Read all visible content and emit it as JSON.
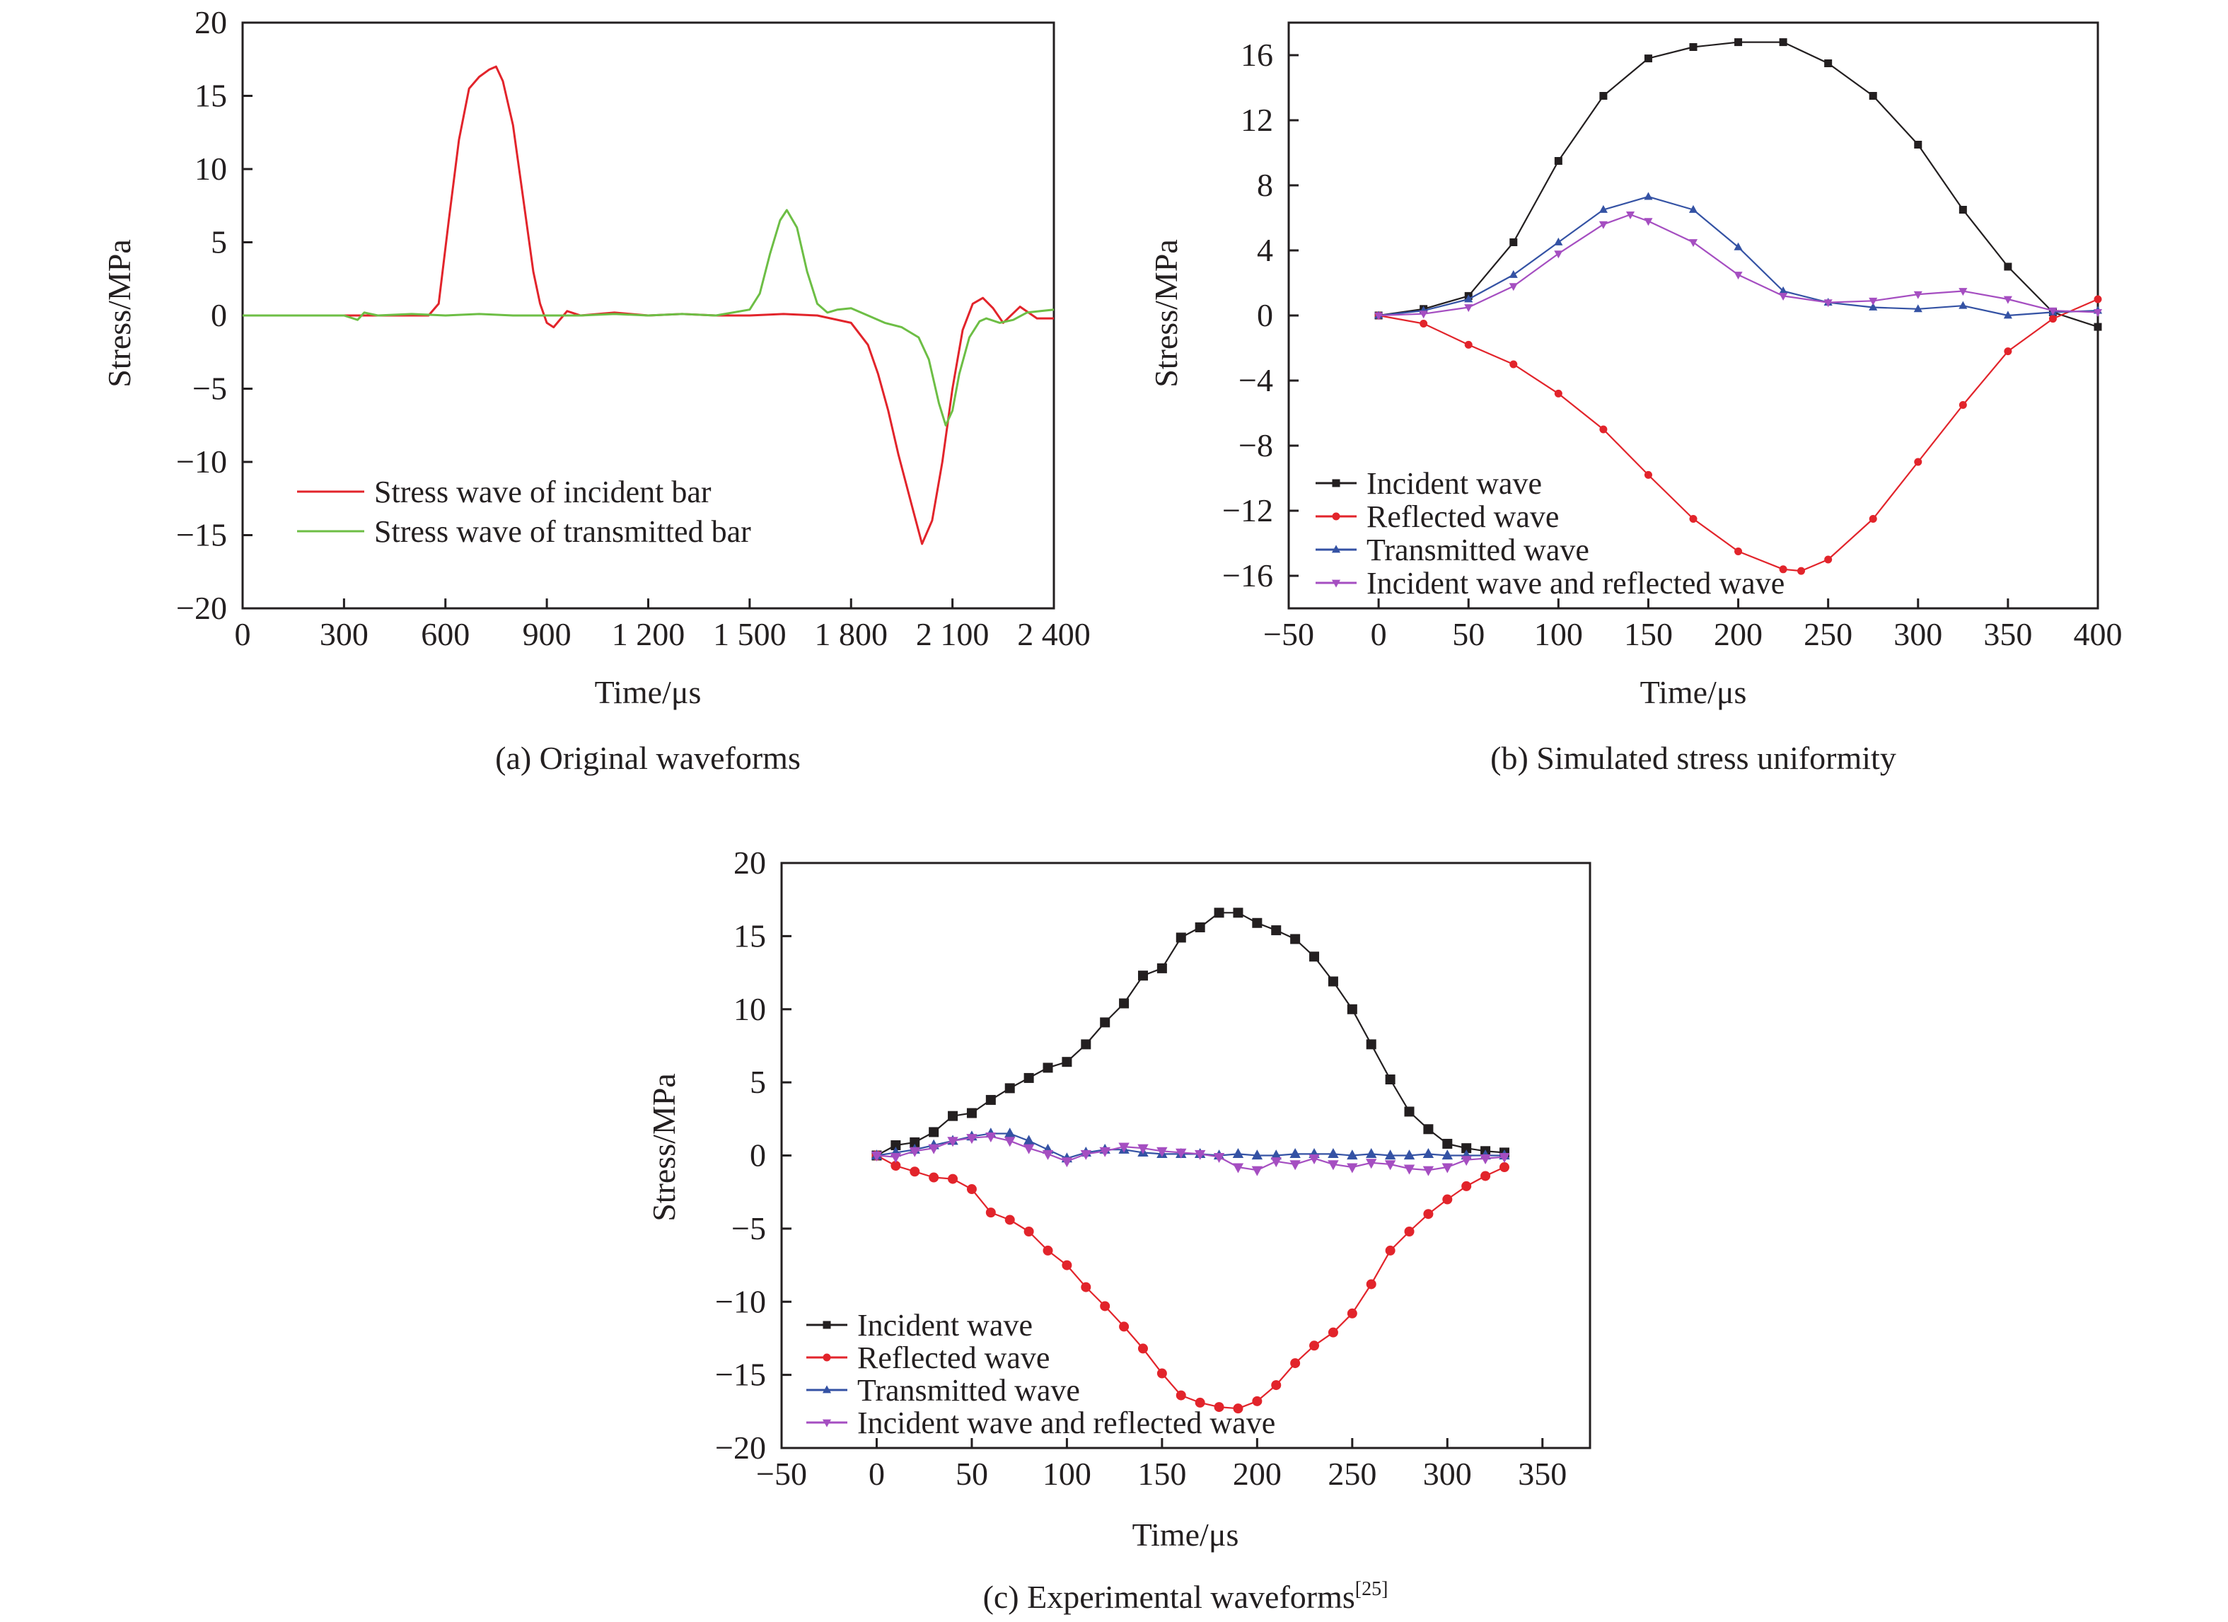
{
  "chart_data": [
    {
      "panel": "a",
      "type": "line",
      "caption": "(a) Original waveforms",
      "xlabel": "Time/μs",
      "ylabel": "Stress/MPa",
      "xlim": [
        0,
        2400
      ],
      "ylim": [
        -20,
        20
      ],
      "xticks": [
        0,
        300,
        600,
        900,
        1200,
        1500,
        1800,
        2100,
        2400
      ],
      "xtick_labels": [
        "0",
        "300",
        "600",
        "900",
        "1 200",
        "1 500",
        "1 800",
        "2 100",
        "2 400"
      ],
      "yticks": [
        -20,
        -15,
        -10,
        -5,
        0,
        5,
        10,
        15,
        20
      ],
      "ytick_labels": [
        "−20",
        "−15",
        "−10",
        "−5",
        "0",
        "5",
        "10",
        "15",
        "20"
      ],
      "legend_position": "lower-left",
      "series": [
        {
          "name": "Stress wave of incident bar",
          "color": "#e2242b",
          "x": [
            0,
            300,
            550,
            580,
            610,
            640,
            670,
            700,
            730,
            750,
            770,
            800,
            830,
            860,
            880,
            900,
            920,
            960,
            1000,
            1100,
            1200,
            1300,
            1400,
            1500,
            1600,
            1700,
            1800,
            1850,
            1880,
            1910,
            1940,
            1980,
            2010,
            2040,
            2070,
            2100,
            2130,
            2160,
            2190,
            2220,
            2250,
            2300,
            2350,
            2400
          ],
          "y": [
            0,
            0,
            0,
            0.8,
            6.5,
            12,
            15.5,
            16.3,
            16.8,
            17,
            16,
            13,
            8,
            3,
            0.8,
            -0.5,
            -0.8,
            0.3,
            0,
            0.2,
            0,
            0.1,
            0,
            0,
            0.1,
            0,
            -0.5,
            -2,
            -4,
            -6.5,
            -9.5,
            -13,
            -15.6,
            -14,
            -10,
            -5,
            -1,
            0.8,
            1.2,
            0.5,
            -0.5,
            0.6,
            -0.2,
            -0.2
          ]
        },
        {
          "name": "Stress wave of transmitted bar",
          "color": "#6dbe45",
          "x": [
            0,
            300,
            340,
            360,
            400,
            500,
            600,
            700,
            800,
            900,
            1000,
            1100,
            1200,
            1300,
            1400,
            1500,
            1530,
            1560,
            1590,
            1610,
            1640,
            1670,
            1700,
            1730,
            1760,
            1800,
            1850,
            1900,
            1950,
            2000,
            2030,
            2060,
            2080,
            2100,
            2120,
            2150,
            2180,
            2200,
            2240,
            2280,
            2320,
            2360,
            2400
          ],
          "y": [
            0,
            0,
            -0.3,
            0.2,
            0,
            0.1,
            0,
            0.1,
            0,
            0,
            0,
            0.1,
            0,
            0.1,
            0,
            0.4,
            1.5,
            4.2,
            6.5,
            7.2,
            6,
            3,
            0.8,
            0.2,
            0.4,
            0.5,
            0,
            -0.5,
            -0.8,
            -1.5,
            -3,
            -6,
            -7.5,
            -6.5,
            -4,
            -1.5,
            -0.4,
            -0.2,
            -0.5,
            -0.3,
            0.2,
            0.3,
            0.4
          ]
        }
      ]
    },
    {
      "panel": "b",
      "type": "line",
      "caption": "(b) Simulated stress uniformity",
      "xlabel": "Time/μs",
      "ylabel": "Stress/MPa",
      "xlim": [
        -50,
        400
      ],
      "ylim": [
        -18,
        18
      ],
      "xticks": [
        -50,
        0,
        50,
        100,
        150,
        200,
        250,
        300,
        350,
        400
      ],
      "xtick_labels": [
        "−50",
        "0",
        "50",
        "100",
        "150",
        "200",
        "250",
        "300",
        "350",
        "400"
      ],
      "yticks": [
        -16,
        -12,
        -8,
        -4,
        0,
        4,
        8,
        12,
        16
      ],
      "ytick_labels": [
        "−16",
        "−12",
        "−8",
        "−4",
        "0",
        "4",
        "8",
        "12",
        "16"
      ],
      "legend_position": "lower-left",
      "series": [
        {
          "name": "Incident wave",
          "color": "#231f20",
          "marker": "square",
          "x": [
            0,
            25,
            50,
            75,
            100,
            125,
            150,
            175,
            200,
            225,
            250,
            275,
            300,
            325,
            350,
            375,
            400
          ],
          "y": [
            0,
            0.4,
            1.2,
            4.5,
            9.5,
            13.5,
            15.8,
            16.5,
            16.8,
            16.8,
            15.5,
            13.5,
            10.5,
            6.5,
            3,
            0.2,
            -0.7
          ]
        },
        {
          "name": "Reflected wave",
          "color": "#e2242b",
          "marker": "circle",
          "x": [
            0,
            25,
            50,
            75,
            100,
            125,
            150,
            175,
            200,
            225,
            235,
            250,
            275,
            300,
            325,
            350,
            375,
            400
          ],
          "y": [
            0,
            -0.5,
            -1.8,
            -3,
            -4.8,
            -7,
            -9.8,
            -12.5,
            -14.5,
            -15.6,
            -15.7,
            -15,
            -12.5,
            -9,
            -5.5,
            -2.2,
            -0.2,
            1
          ]
        },
        {
          "name": "Transmitted wave",
          "color": "#3452a4",
          "marker": "triangle-up",
          "x": [
            0,
            25,
            50,
            75,
            100,
            125,
            150,
            175,
            200,
            225,
            250,
            275,
            300,
            325,
            350,
            375,
            400
          ],
          "y": [
            0,
            0.3,
            1,
            2.5,
            4.5,
            6.5,
            7.3,
            6.5,
            4.2,
            1.5,
            0.8,
            0.5,
            0.4,
            0.6,
            0,
            0.2,
            0.3
          ]
        },
        {
          "name": "Incident wave and reflected wave",
          "color": "#a54ec1",
          "marker": "triangle-down",
          "x": [
            0,
            25,
            50,
            75,
            100,
            125,
            140,
            150,
            175,
            200,
            225,
            250,
            275,
            300,
            325,
            350,
            375,
            400
          ],
          "y": [
            0,
            0.1,
            0.5,
            1.8,
            3.8,
            5.6,
            6.2,
            5.8,
            4.5,
            2.5,
            1.2,
            0.8,
            0.9,
            1.3,
            1.5,
            1,
            0.3,
            0.2
          ]
        }
      ]
    },
    {
      "panel": "c",
      "type": "line",
      "caption": "(c) Experimental waveforms",
      "caption_ref": "[25]",
      "xlabel": "Time/μs",
      "ylabel": "Stress/MPa",
      "xlim": [
        -50,
        375
      ],
      "ylim": [
        -20,
        20
      ],
      "xticks": [
        -50,
        0,
        50,
        100,
        150,
        200,
        250,
        300,
        350
      ],
      "xtick_labels": [
        "−50",
        "0",
        "50",
        "100",
        "150",
        "200",
        "250",
        "300",
        "350"
      ],
      "yticks": [
        -20,
        -15,
        -10,
        -5,
        0,
        5,
        10,
        15,
        20
      ],
      "ytick_labels": [
        "−20",
        "−15",
        "−10",
        "−5",
        "0",
        "5",
        "10",
        "15",
        "20"
      ],
      "legend_position": "lower-left",
      "series": [
        {
          "name": "Incident wave",
          "color": "#231f20",
          "marker": "square",
          "x": [
            0,
            10,
            20,
            30,
            40,
            50,
            60,
            70,
            80,
            90,
            100,
            110,
            120,
            130,
            140,
            150,
            160,
            170,
            180,
            190,
            200,
            210,
            220,
            230,
            240,
            250,
            260,
            270,
            280,
            290,
            300,
            310,
            320,
            330
          ],
          "y": [
            0,
            0.7,
            0.9,
            1.6,
            2.7,
            2.9,
            3.8,
            4.6,
            5.3,
            6.0,
            6.4,
            7.6,
            9.1,
            10.4,
            12.3,
            12.8,
            14.9,
            15.6,
            16.6,
            16.6,
            15.9,
            15.4,
            14.8,
            13.6,
            11.9,
            10.0,
            7.6,
            5.2,
            3.0,
            1.8,
            0.8,
            0.5,
            0.3,
            0.2
          ]
        },
        {
          "name": "Reflected wave",
          "color": "#e2242b",
          "marker": "circle",
          "x": [
            0,
            10,
            20,
            30,
            40,
            50,
            60,
            70,
            80,
            90,
            100,
            110,
            120,
            130,
            140,
            150,
            160,
            170,
            180,
            190,
            200,
            210,
            220,
            230,
            240,
            250,
            260,
            270,
            280,
            290,
            300,
            310,
            320,
            330
          ],
          "y": [
            0,
            -0.7,
            -1.1,
            -1.5,
            -1.6,
            -2.3,
            -3.9,
            -4.4,
            -5.2,
            -6.5,
            -7.5,
            -9.0,
            -10.3,
            -11.7,
            -13.2,
            -14.9,
            -16.4,
            -16.9,
            -17.2,
            -17.3,
            -16.8,
            -15.7,
            -14.2,
            -13.0,
            -12.1,
            -10.8,
            -8.8,
            -6.5,
            -5.2,
            -4.0,
            -3.0,
            -2.1,
            -1.4,
            -0.8
          ]
        },
        {
          "name": "Transmitted wave",
          "color": "#3452a4",
          "marker": "triangle-up",
          "x": [
            0,
            10,
            20,
            30,
            40,
            50,
            60,
            70,
            80,
            90,
            100,
            110,
            120,
            130,
            140,
            150,
            160,
            170,
            180,
            190,
            200,
            210,
            220,
            230,
            240,
            250,
            260,
            270,
            280,
            290,
            300,
            310,
            320,
            330
          ],
          "y": [
            0,
            0.2,
            0.4,
            0.7,
            1.0,
            1.3,
            1.5,
            1.5,
            1.0,
            0.4,
            -0.2,
            0.2,
            0.4,
            0.4,
            0.2,
            0.1,
            0.1,
            0.1,
            0.0,
            0.1,
            0.0,
            0.0,
            0.1,
            0.1,
            0.1,
            0.0,
            0.1,
            0.0,
            0.0,
            0.1,
            0.0,
            0.0,
            0.0,
            0.0
          ]
        },
        {
          "name": "Incident wave and reflected wave",
          "color": "#a54ec1",
          "marker": "triangle-down",
          "x": [
            0,
            10,
            20,
            30,
            40,
            50,
            60,
            70,
            80,
            90,
            100,
            110,
            120,
            130,
            140,
            150,
            160,
            170,
            180,
            190,
            200,
            210,
            220,
            230,
            240,
            250,
            260,
            270,
            280,
            290,
            300,
            310,
            320,
            330
          ],
          "y": [
            0,
            -0.1,
            0.3,
            0.5,
            1.0,
            1.2,
            1.3,
            1.0,
            0.5,
            0.1,
            -0.4,
            0.1,
            0.3,
            0.6,
            0.5,
            0.3,
            0.2,
            0.1,
            -0.1,
            -0.8,
            -1.0,
            -0.4,
            -0.6,
            -0.2,
            -0.6,
            -0.8,
            -0.5,
            -0.6,
            -0.9,
            -1.0,
            -0.8,
            -0.3,
            -0.2,
            -0.1
          ]
        }
      ]
    }
  ]
}
